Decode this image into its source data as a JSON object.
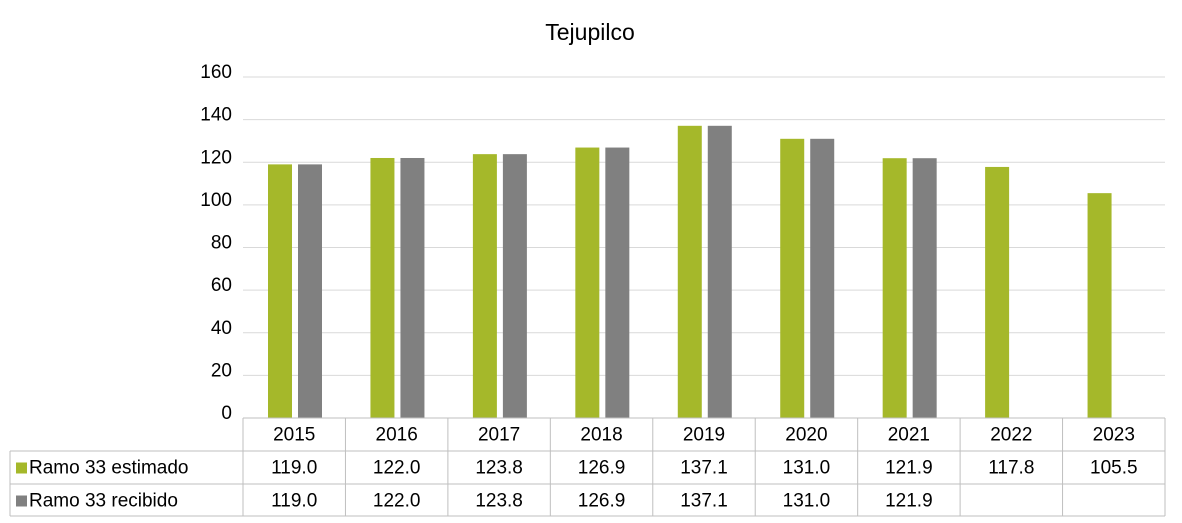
{
  "chart_data": {
    "type": "bar",
    "title": "Tejupilco",
    "categories": [
      "2015",
      "2016",
      "2017",
      "2018",
      "2019",
      "2020",
      "2021",
      "2022",
      "2023"
    ],
    "series": [
      {
        "name": "Ramo 33 estimado",
        "color": "#a5b82a",
        "values": [
          119.0,
          122.0,
          123.8,
          126.9,
          137.1,
          131.0,
          121.9,
          117.8,
          105.5
        ],
        "value_labels": [
          "119.0",
          "122.0",
          "123.8",
          "126.9",
          "137.1",
          "131.0",
          "121.9",
          "117.8",
          "105.5"
        ]
      },
      {
        "name": "Ramo 33 recibido",
        "color": "#808080",
        "values": [
          119.0,
          122.0,
          123.8,
          126.9,
          137.1,
          131.0,
          121.9,
          null,
          null
        ],
        "value_labels": [
          "119.0",
          "122.0",
          "123.8",
          "126.9",
          "137.1",
          "131.0",
          "121.9",
          null,
          null
        ]
      }
    ],
    "ylim": [
      0,
      160
    ],
    "yticks": [
      0,
      20,
      40,
      60,
      80,
      100,
      120,
      140,
      160
    ],
    "grid": true
  }
}
